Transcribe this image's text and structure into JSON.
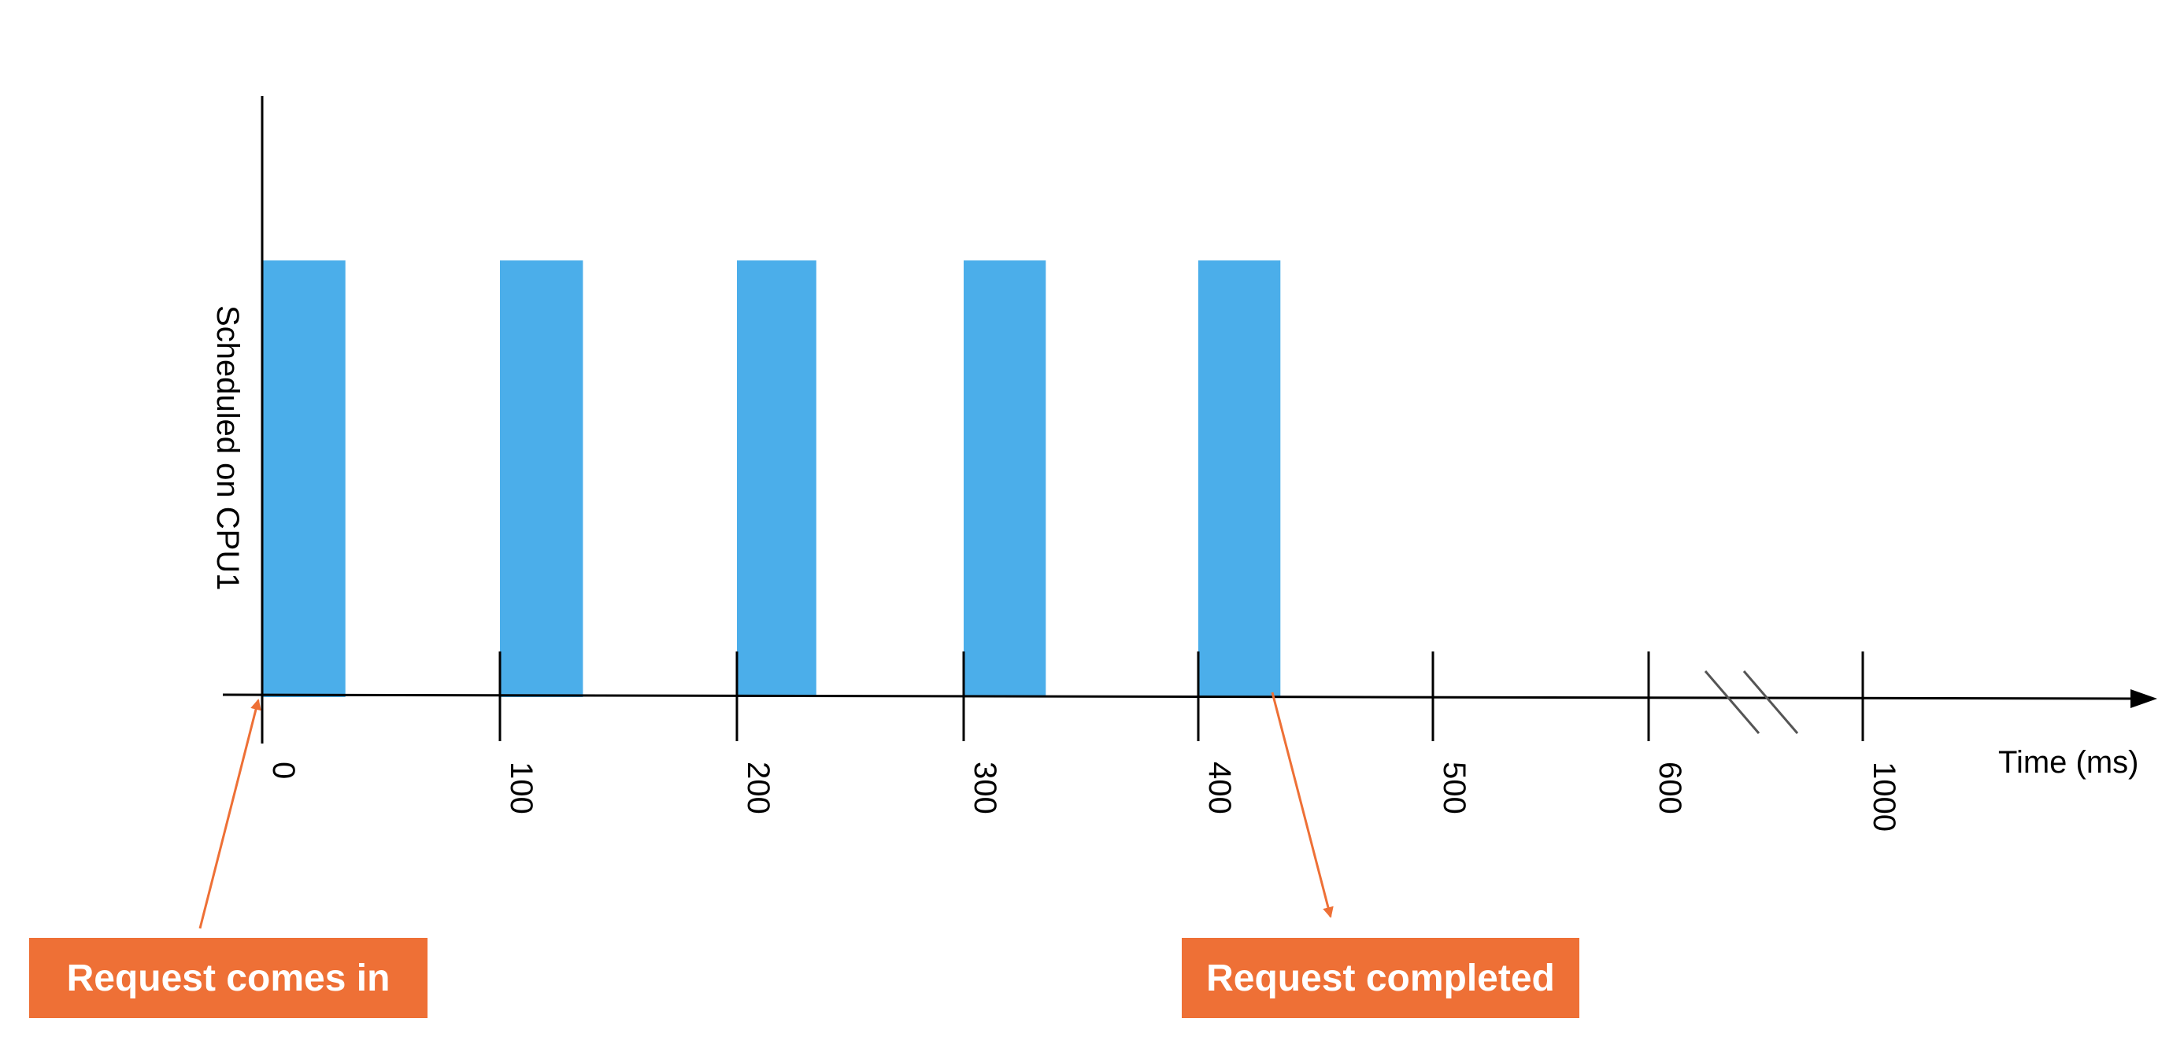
{
  "chart_data": {
    "type": "bar",
    "ylabel": "Scheduled on CPU1",
    "xlabel": "Time (ms)",
    "x_ticks": [
      "0",
      "100",
      "200",
      "300",
      "400",
      "500",
      "600",
      "1000"
    ],
    "axis_break_between": [
      "600",
      "1000"
    ],
    "bars": [
      {
        "start": 0,
        "end": 35,
        "scheduled": 1
      },
      {
        "start": 100,
        "end": 135,
        "scheduled": 1
      },
      {
        "start": 200,
        "end": 235,
        "scheduled": 1
      },
      {
        "start": 300,
        "end": 335,
        "scheduled": 1
      },
      {
        "start": 400,
        "end": 435,
        "scheduled": 1
      }
    ],
    "bar_color": "#4baeea",
    "annotations": [
      {
        "text": "Request comes in",
        "x": 0,
        "color": "#ee7036"
      },
      {
        "text": "Request completed",
        "x": 435,
        "color": "#ee7036"
      }
    ]
  }
}
